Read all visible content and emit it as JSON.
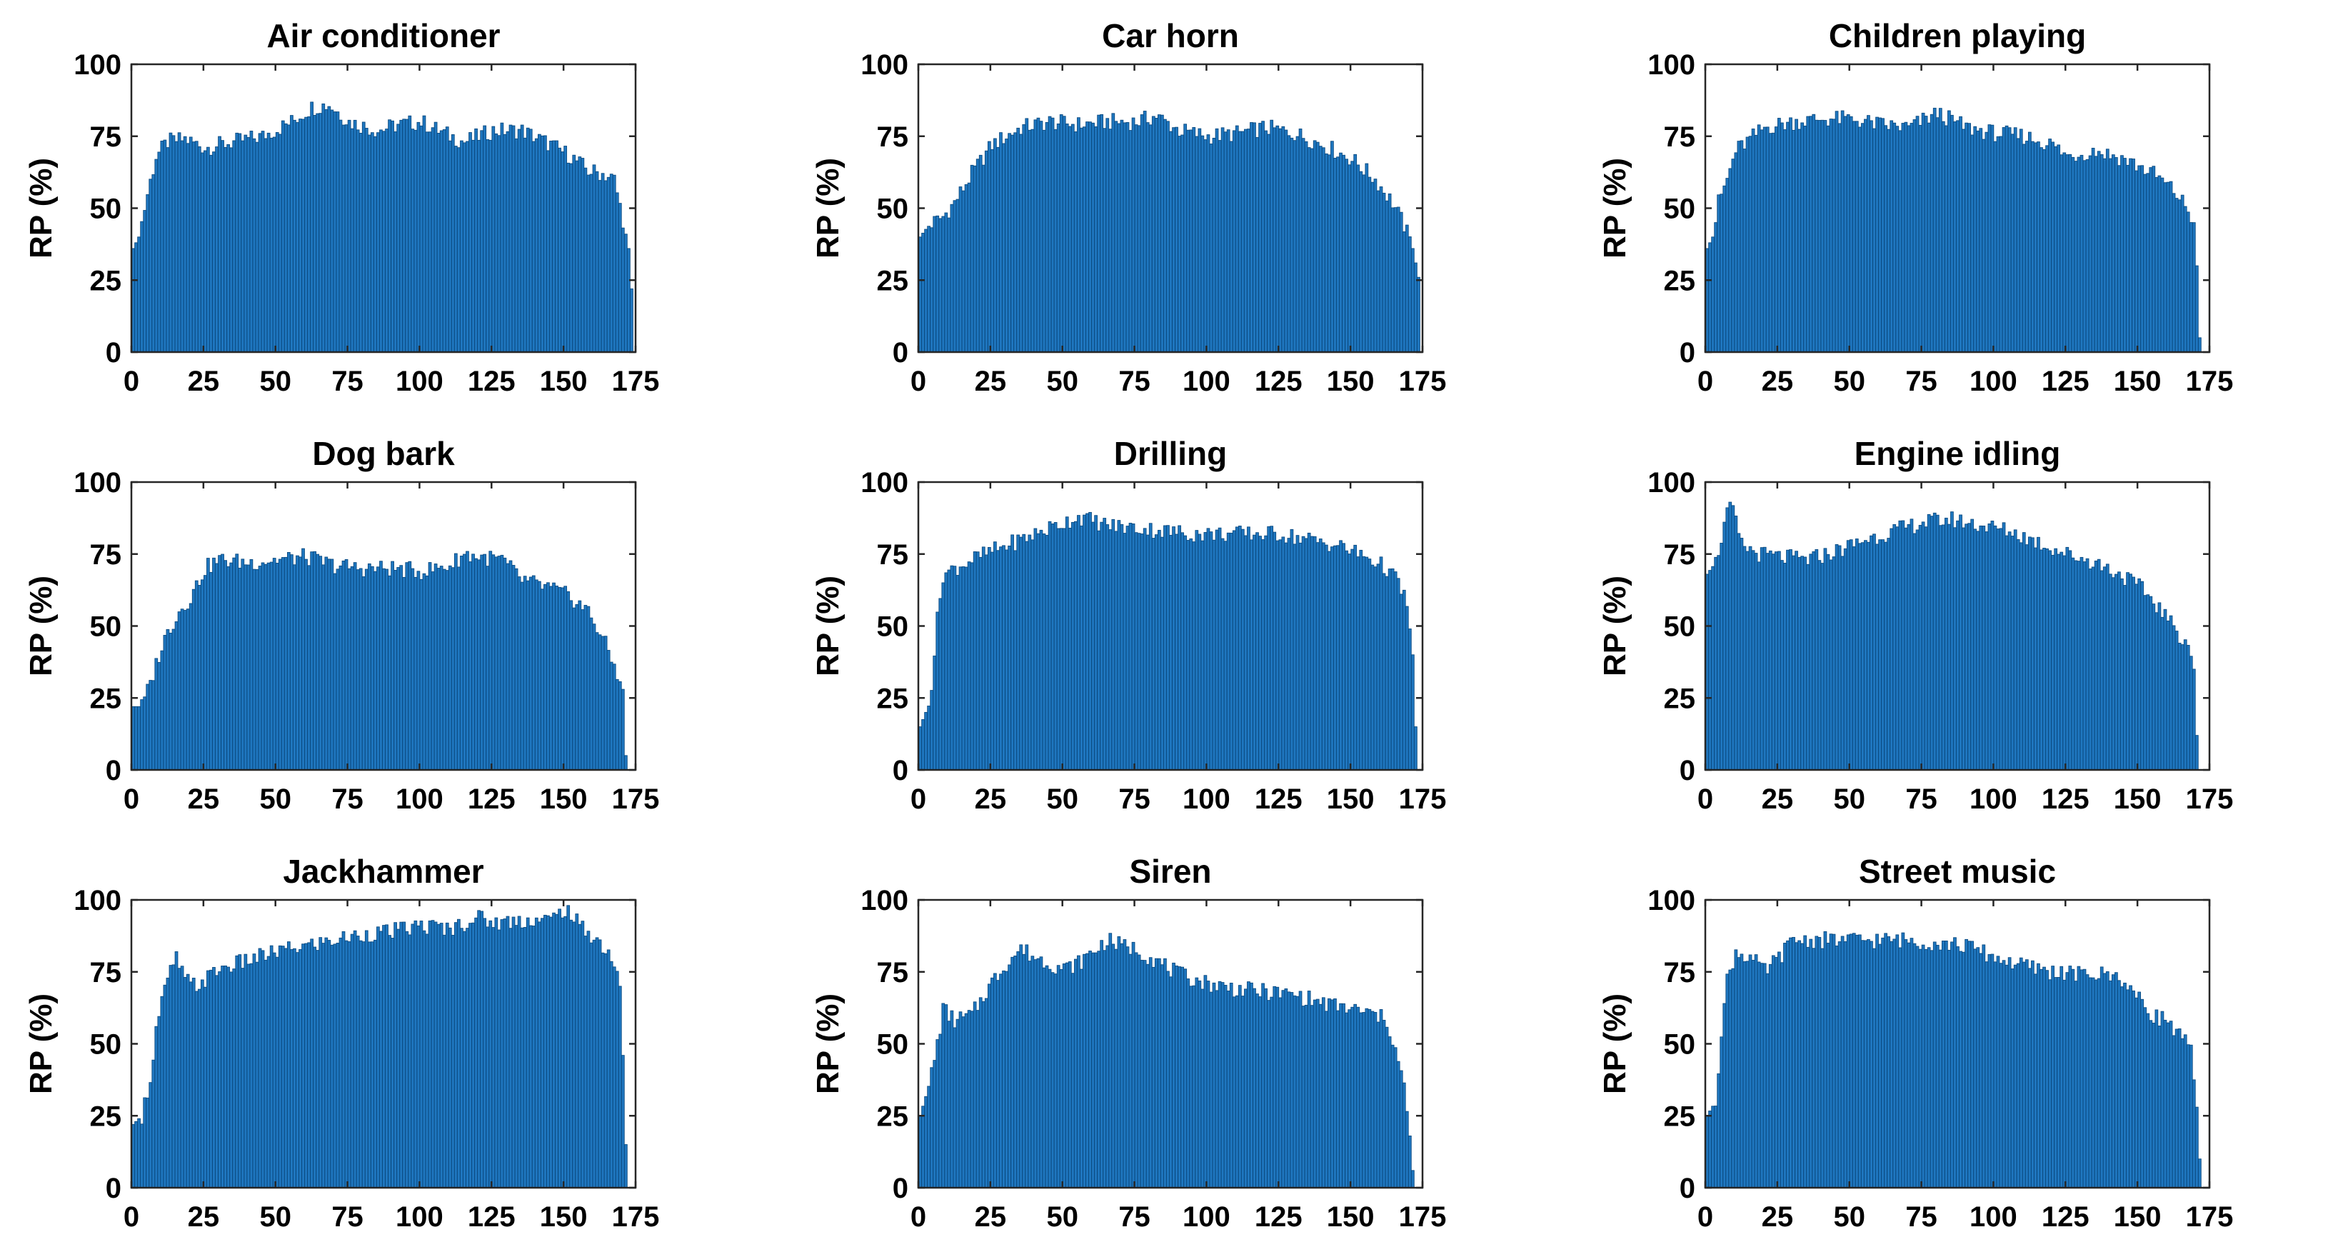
{
  "figure": {
    "rows": 3,
    "cols": 3,
    "bar_color": "#1f77c0"
  },
  "chart_data": [
    {
      "type": "bar",
      "title": "Air conditioner",
      "ylabel": "RP (%)",
      "xlabel": "",
      "xlim": [
        0,
        175
      ],
      "ylim": [
        0,
        100
      ],
      "xticks": [
        0,
        25,
        50,
        75,
        100,
        125,
        150,
        175
      ],
      "yticks": [
        0,
        25,
        50,
        75,
        100
      ],
      "grid": false,
      "envelope": [
        [
          0,
          36
        ],
        [
          2,
          40
        ],
        [
          5,
          55
        ],
        [
          8,
          68
        ],
        [
          12,
          73
        ],
        [
          18,
          74
        ],
        [
          25,
          71
        ],
        [
          35,
          73
        ],
        [
          45,
          75
        ],
        [
          55,
          80
        ],
        [
          62,
          85
        ],
        [
          68,
          86
        ],
        [
          75,
          80
        ],
        [
          85,
          77
        ],
        [
          92,
          79
        ],
        [
          100,
          80
        ],
        [
          108,
          76
        ],
        [
          115,
          73
        ],
        [
          125,
          77
        ],
        [
          135,
          77
        ],
        [
          145,
          72
        ],
        [
          152,
          68
        ],
        [
          158,
          63
        ],
        [
          163,
          62
        ],
        [
          167,
          60
        ],
        [
          170,
          46
        ],
        [
          172,
          36
        ],
        [
          173,
          22
        ]
      ]
    },
    {
      "type": "bar",
      "title": "Car horn",
      "ylabel": "RP (%)",
      "xlabel": "",
      "xlim": [
        0,
        175
      ],
      "ylim": [
        0,
        100
      ],
      "xticks": [
        0,
        25,
        50,
        75,
        100,
        125,
        150,
        175
      ],
      "yticks": [
        0,
        25,
        50,
        75,
        100
      ],
      "grid": false,
      "envelope": [
        [
          0,
          40
        ],
        [
          3,
          44
        ],
        [
          8,
          47
        ],
        [
          12,
          52
        ],
        [
          18,
          62
        ],
        [
          25,
          72
        ],
        [
          35,
          78
        ],
        [
          45,
          80
        ],
        [
          55,
          79
        ],
        [
          65,
          80
        ],
        [
          75,
          80
        ],
        [
          82,
          82
        ],
        [
          90,
          77
        ],
        [
          100,
          75
        ],
        [
          110,
          76
        ],
        [
          120,
          78
        ],
        [
          130,
          76
        ],
        [
          140,
          72
        ],
        [
          150,
          67
        ],
        [
          158,
          60
        ],
        [
          164,
          52
        ],
        [
          168,
          44
        ],
        [
          171,
          36
        ],
        [
          173,
          26
        ]
      ]
    },
    {
      "type": "bar",
      "title": "Children playing",
      "ylabel": "RP (%)",
      "xlabel": "",
      "xlim": [
        0,
        175
      ],
      "ylim": [
        0,
        100
      ],
      "xticks": [
        0,
        25,
        50,
        75,
        100,
        125,
        150,
        175
      ],
      "yticks": [
        0,
        25,
        50,
        75,
        100
      ],
      "grid": false,
      "envelope": [
        [
          0,
          36
        ],
        [
          2,
          40
        ],
        [
          4,
          52
        ],
        [
          7,
          60
        ],
        [
          10,
          70
        ],
        [
          15,
          74
        ],
        [
          20,
          78
        ],
        [
          30,
          80
        ],
        [
          40,
          81
        ],
        [
          50,
          81
        ],
        [
          60,
          79
        ],
        [
          70,
          78
        ],
        [
          80,
          83
        ],
        [
          90,
          78
        ],
        [
          100,
          76
        ],
        [
          110,
          75
        ],
        [
          120,
          72
        ],
        [
          125,
          68
        ],
        [
          135,
          70
        ],
        [
          145,
          67
        ],
        [
          155,
          62
        ],
        [
          162,
          56
        ],
        [
          166,
          51
        ],
        [
          169,
          45
        ],
        [
          170,
          30
        ],
        [
          171,
          5
        ]
      ]
    },
    {
      "type": "bar",
      "title": "Dog bark",
      "ylabel": "RP (%)",
      "xlabel": "",
      "xlim": [
        0,
        175
      ],
      "ylim": [
        0,
        100
      ],
      "xticks": [
        0,
        25,
        50,
        75,
        100,
        125,
        150,
        175
      ],
      "yticks": [
        0,
        25,
        50,
        75,
        100
      ],
      "grid": false,
      "envelope": [
        [
          0,
          22
        ],
        [
          3,
          22
        ],
        [
          6,
          30
        ],
        [
          9,
          40
        ],
        [
          12,
          48
        ],
        [
          16,
          55
        ],
        [
          20,
          60
        ],
        [
          25,
          70
        ],
        [
          30,
          73
        ],
        [
          40,
          72
        ],
        [
          50,
          73
        ],
        [
          60,
          74
        ],
        [
          70,
          71
        ],
        [
          80,
          70
        ],
        [
          90,
          70
        ],
        [
          100,
          69
        ],
        [
          110,
          71
        ],
        [
          115,
          75
        ],
        [
          120,
          74
        ],
        [
          128,
          73
        ],
        [
          135,
          66
        ],
        [
          145,
          63
        ],
        [
          152,
          60
        ],
        [
          158,
          55
        ],
        [
          163,
          46
        ],
        [
          167,
          36
        ],
        [
          170,
          28
        ],
        [
          171,
          5
        ]
      ]
    },
    {
      "type": "bar",
      "title": "Drilling",
      "ylabel": "RP (%)",
      "xlabel": "",
      "xlim": [
        0,
        175
      ],
      "ylim": [
        0,
        100
      ],
      "xticks": [
        0,
        25,
        50,
        75,
        100,
        125,
        150,
        175
      ],
      "yticks": [
        0,
        25,
        50,
        75,
        100
      ],
      "grid": false,
      "envelope": [
        [
          0,
          15
        ],
        [
          2,
          20
        ],
        [
          4,
          30
        ],
        [
          6,
          52
        ],
        [
          8,
          68
        ],
        [
          12,
          70
        ],
        [
          18,
          73
        ],
        [
          25,
          76
        ],
        [
          35,
          80
        ],
        [
          45,
          84
        ],
        [
          55,
          88
        ],
        [
          65,
          85
        ],
        [
          75,
          84
        ],
        [
          85,
          83
        ],
        [
          95,
          82
        ],
        [
          105,
          82
        ],
        [
          115,
          82
        ],
        [
          125,
          82
        ],
        [
          135,
          80
        ],
        [
          145,
          78
        ],
        [
          155,
          74
        ],
        [
          162,
          70
        ],
        [
          166,
          65
        ],
        [
          169,
          58
        ],
        [
          171,
          40
        ],
        [
          172,
          15
        ]
      ]
    },
    {
      "type": "bar",
      "title": "Engine idling",
      "ylabel": "RP (%)",
      "xlabel": "",
      "xlim": [
        0,
        175
      ],
      "ylim": [
        0,
        100
      ],
      "xticks": [
        0,
        25,
        50,
        75,
        100,
        125,
        150,
        175
      ],
      "yticks": [
        0,
        25,
        50,
        75,
        100
      ],
      "grid": false,
      "envelope": [
        [
          0,
          68
        ],
        [
          3,
          72
        ],
        [
          6,
          85
        ],
        [
          8,
          92
        ],
        [
          10,
          86
        ],
        [
          12,
          78
        ],
        [
          18,
          75
        ],
        [
          25,
          74
        ],
        [
          35,
          73
        ],
        [
          45,
          76
        ],
        [
          55,
          80
        ],
        [
          65,
          83
        ],
        [
          75,
          86
        ],
        [
          85,
          87
        ],
        [
          95,
          85
        ],
        [
          105,
          83
        ],
        [
          115,
          79
        ],
        [
          125,
          75
        ],
        [
          135,
          72
        ],
        [
          145,
          67
        ],
        [
          152,
          62
        ],
        [
          158,
          55
        ],
        [
          163,
          48
        ],
        [
          167,
          44
        ],
        [
          169,
          35
        ],
        [
          170,
          12
        ]
      ]
    },
    {
      "type": "bar",
      "title": "Jackhammer",
      "ylabel": "RP (%)",
      "xlabel": "",
      "xlim": [
        0,
        175
      ],
      "ylim": [
        0,
        100
      ],
      "xticks": [
        0,
        25,
        50,
        75,
        100,
        125,
        150,
        175
      ],
      "yticks": [
        0,
        25,
        50,
        75,
        100
      ],
      "grid": false,
      "envelope": [
        [
          0,
          22
        ],
        [
          3,
          25
        ],
        [
          6,
          38
        ],
        [
          8,
          55
        ],
        [
          10,
          65
        ],
        [
          13,
          75
        ],
        [
          15,
          80
        ],
        [
          18,
          72
        ],
        [
          22,
          70
        ],
        [
          30,
          76
        ],
        [
          40,
          79
        ],
        [
          50,
          82
        ],
        [
          60,
          84
        ],
        [
          70,
          86
        ],
        [
          80,
          88
        ],
        [
          90,
          89
        ],
        [
          100,
          91
        ],
        [
          110,
          90
        ],
        [
          120,
          94
        ],
        [
          125,
          92
        ],
        [
          135,
          93
        ],
        [
          145,
          93
        ],
        [
          150,
          97
        ],
        [
          155,
          91
        ],
        [
          160,
          87
        ],
        [
          164,
          83
        ],
        [
          167,
          78
        ],
        [
          169,
          70
        ],
        [
          170,
          46
        ],
        [
          171,
          15
        ]
      ]
    },
    {
      "type": "bar",
      "title": "Siren",
      "ylabel": "RP (%)",
      "xlabel": "",
      "xlim": [
        0,
        175
      ],
      "ylim": [
        0,
        100
      ],
      "xticks": [
        0,
        25,
        50,
        75,
        100,
        125,
        150,
        175
      ],
      "yticks": [
        0,
        25,
        50,
        75,
        100
      ],
      "grid": false,
      "envelope": [
        [
          0,
          25
        ],
        [
          3,
          35
        ],
        [
          6,
          50
        ],
        [
          8,
          62
        ],
        [
          12,
          58
        ],
        [
          18,
          60
        ],
        [
          24,
          70
        ],
        [
          30,
          78
        ],
        [
          35,
          83
        ],
        [
          40,
          80
        ],
        [
          45,
          78
        ],
        [
          50,
          76
        ],
        [
          55,
          78
        ],
        [
          60,
          82
        ],
        [
          65,
          86
        ],
        [
          70,
          84
        ],
        [
          75,
          83
        ],
        [
          80,
          80
        ],
        [
          90,
          74
        ],
        [
          100,
          71
        ],
        [
          110,
          69
        ],
        [
          120,
          68
        ],
        [
          130,
          67
        ],
        [
          140,
          64
        ],
        [
          150,
          62
        ],
        [
          158,
          60
        ],
        [
          162,
          58
        ],
        [
          165,
          48
        ],
        [
          168,
          35
        ],
        [
          170,
          18
        ],
        [
          171,
          6
        ]
      ]
    },
    {
      "type": "bar",
      "title": "Street music",
      "ylabel": "RP (%)",
      "xlabel": "",
      "xlim": [
        0,
        175
      ],
      "ylim": [
        0,
        100
      ],
      "xticks": [
        0,
        25,
        50,
        75,
        100,
        125,
        150,
        175
      ],
      "yticks": [
        0,
        25,
        50,
        75,
        100
      ],
      "grid": false,
      "envelope": [
        [
          0,
          25
        ],
        [
          3,
          30
        ],
        [
          5,
          55
        ],
        [
          7,
          72
        ],
        [
          10,
          82
        ],
        [
          15,
          80
        ],
        [
          20,
          75
        ],
        [
          25,
          80
        ],
        [
          30,
          86
        ],
        [
          40,
          86
        ],
        [
          50,
          86
        ],
        [
          60,
          86
        ],
        [
          70,
          86
        ],
        [
          80,
          85
        ],
        [
          90,
          84
        ],
        [
          100,
          80
        ],
        [
          110,
          77
        ],
        [
          120,
          75
        ],
        [
          130,
          74
        ],
        [
          140,
          74
        ],
        [
          145,
          72
        ],
        [
          150,
          65
        ],
        [
          155,
          60
        ],
        [
          160,
          58
        ],
        [
          165,
          52
        ],
        [
          168,
          47
        ],
        [
          170,
          28
        ],
        [
          171,
          10
        ]
      ]
    }
  ]
}
